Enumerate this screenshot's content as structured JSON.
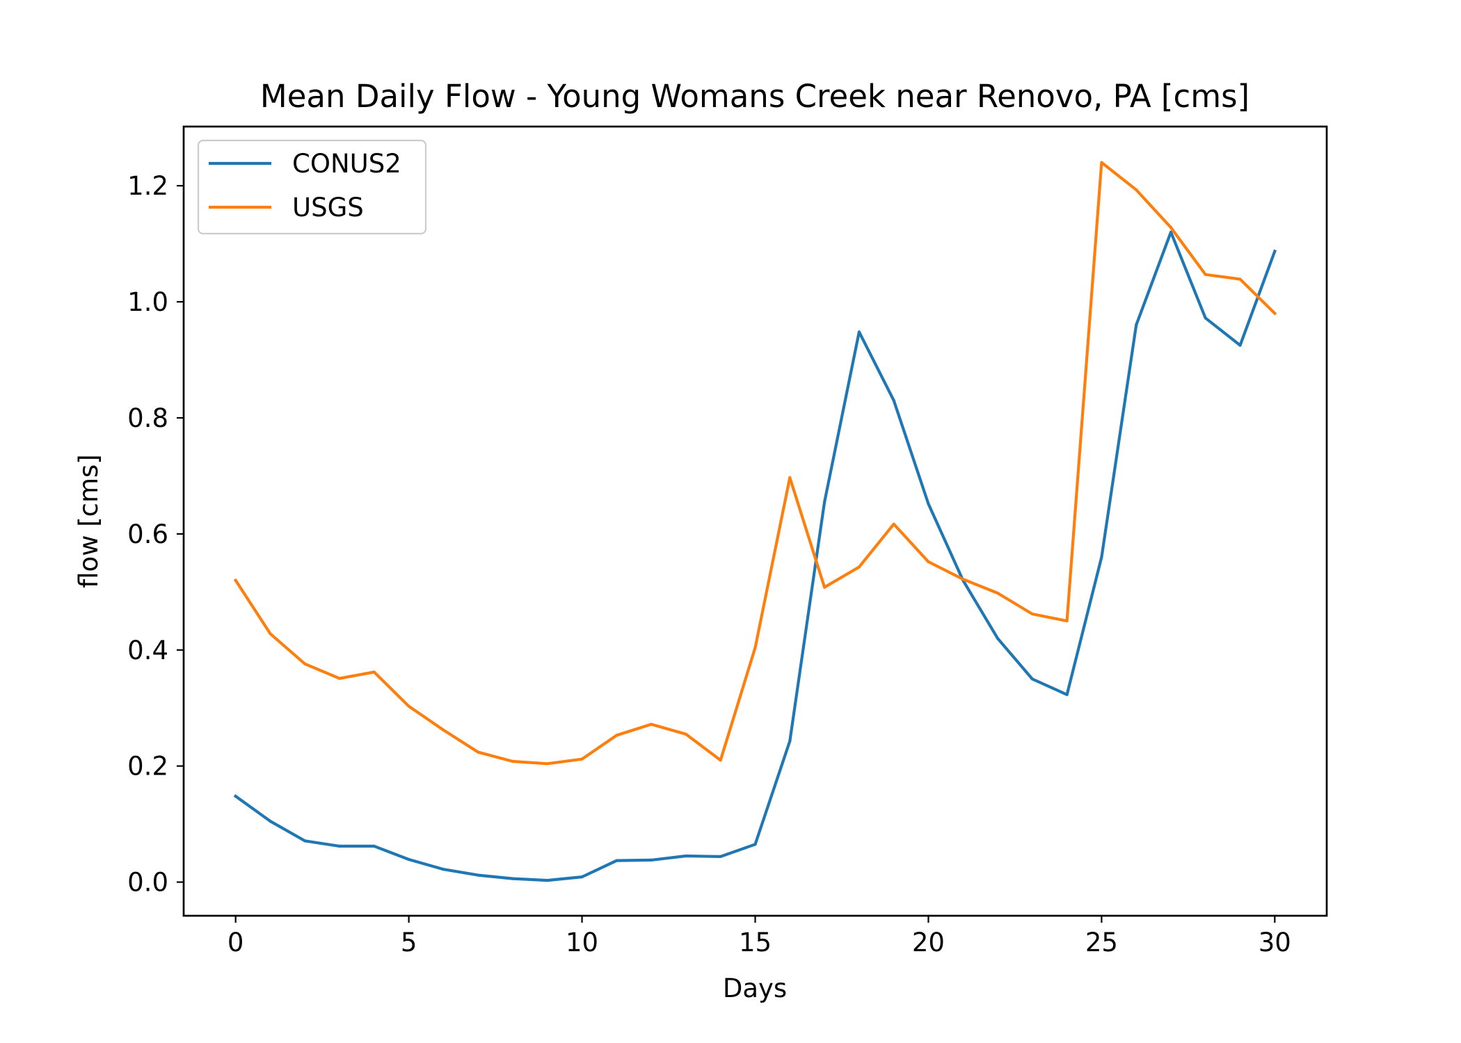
{
  "chart_data": {
    "type": "line",
    "title": "Mean Daily Flow - Young Womans Creek near Renovo, PA [cms]",
    "xlabel": "Days",
    "ylabel": "flow [cms]",
    "xlim": [
      -1.5,
      31.5
    ],
    "ylim": [
      -0.058,
      1.302
    ],
    "x_ticks": [
      0,
      5,
      10,
      15,
      20,
      25,
      30
    ],
    "x_tick_labels": [
      "0",
      "5",
      "10",
      "15",
      "20",
      "25",
      "30"
    ],
    "y_ticks": [
      0.0,
      0.2,
      0.4,
      0.6,
      0.8,
      1.0,
      1.2
    ],
    "y_tick_labels": [
      "0.0",
      "0.2",
      "0.4",
      "0.6",
      "0.8",
      "1.0",
      "1.2"
    ],
    "grid": false,
    "legend_position": "top-left",
    "x": [
      0,
      1,
      2,
      3,
      4,
      5,
      6,
      7,
      8,
      9,
      10,
      11,
      12,
      13,
      14,
      15,
      16,
      17,
      18,
      19,
      20,
      21,
      22,
      23,
      24,
      25,
      26,
      27,
      28,
      29,
      30
    ],
    "series": [
      {
        "name": "CONUS2",
        "color": "#1f77b4",
        "values": [
          0.148,
          0.105,
          0.071,
          0.062,
          0.062,
          0.039,
          0.022,
          0.012,
          0.006,
          0.003,
          0.009,
          0.037,
          0.038,
          0.045,
          0.044,
          0.065,
          0.243,
          0.655,
          0.948,
          0.83,
          0.652,
          0.52,
          0.42,
          0.35,
          0.323,
          0.56,
          0.96,
          1.12,
          0.972,
          0.925,
          1.087
        ]
      },
      {
        "name": "USGS",
        "color": "#ff7f0e",
        "values": [
          0.52,
          0.428,
          0.376,
          0.351,
          0.362,
          0.303,
          0.262,
          0.224,
          0.208,
          0.204,
          0.212,
          0.253,
          0.272,
          0.255,
          0.21,
          0.404,
          0.697,
          0.508,
          0.543,
          0.617,
          0.552,
          0.522,
          0.498,
          0.462,
          0.45,
          1.24,
          1.193,
          1.128,
          1.047,
          1.039,
          0.98
        ]
      }
    ]
  }
}
